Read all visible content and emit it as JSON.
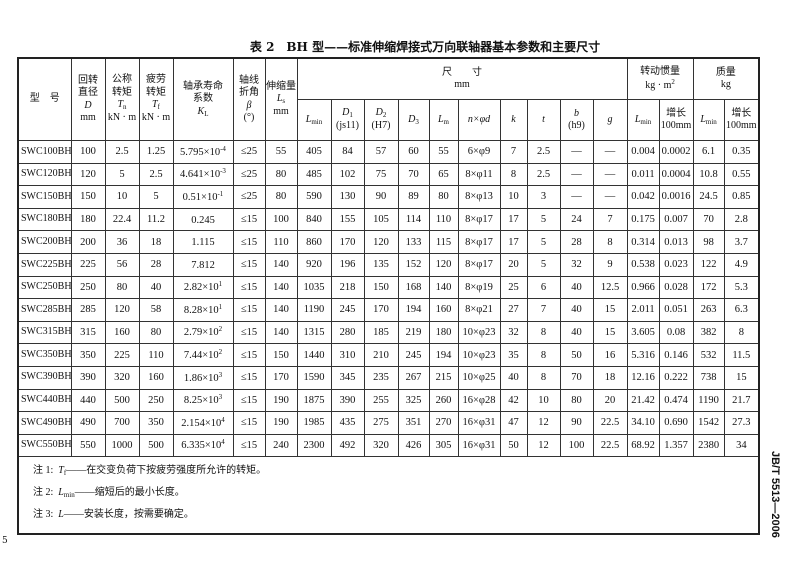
{
  "title": "表 2　BH 型——标准伸缩焊接式万向联轴器基本参数和主要尺寸",
  "headers": {
    "model": "型　号",
    "D": {
      "l1": "回转",
      "l2": "直径",
      "sym": "D",
      "unit": "mm"
    },
    "Tn": {
      "l1": "公称",
      "l2": "转矩",
      "sym": "T",
      "sub": "n",
      "unit": "kN · m"
    },
    "Tf": {
      "l1": "疲劳",
      "l2": "转矩",
      "sym": "T",
      "sub": "f",
      "unit": "kN · m"
    },
    "KL": {
      "l1": "轴承寿命",
      "l2": "系数",
      "sym": "K",
      "sub": "L"
    },
    "beta": {
      "l1": "轴线",
      "l2": "折角",
      "sym": "β",
      "unit": "(°)"
    },
    "Ls": {
      "l1": "伸缩量",
      "sym": "L",
      "sub": "s",
      "unit": "mm"
    },
    "dims": {
      "l1": "尺　　寸",
      "unit": "mm"
    },
    "Lmin": {
      "sym": "L",
      "sub": "min"
    },
    "D1": {
      "sym": "D",
      "sub": "1",
      "tol": "(js11)"
    },
    "D2": {
      "sym": "D",
      "sub": "2",
      "tol": "(H7)"
    },
    "D3": {
      "sym": "D",
      "sub": "3"
    },
    "Lm": {
      "sym": "L",
      "sub": "m"
    },
    "nd": "n×φd",
    "k": "k",
    "t": "t",
    "b": {
      "sym": "b",
      "tol": "(h9)"
    },
    "g": "g",
    "inertia": {
      "l1": "转动惯量",
      "unit": "kg · m",
      "sup": "2"
    },
    "mass": {
      "l1": "质量",
      "unit": "kg"
    },
    "growth": {
      "l1": "增长",
      "l2": "100mm"
    }
  },
  "rows": [
    [
      "SWC100BH",
      "100",
      "2.5",
      "1.25",
      [
        "5.795×10",
        "-4"
      ],
      "≤25",
      "55",
      "405",
      "84",
      "57",
      "60",
      "55",
      "6×φ9",
      "7",
      "2.5",
      "—",
      "—",
      "0.004",
      "0.0002",
      "6.1",
      "0.35"
    ],
    [
      "SWC120BH",
      "120",
      "5",
      "2.5",
      [
        "4.641×10",
        "-3"
      ],
      "≤25",
      "80",
      "485",
      "102",
      "75",
      "70",
      "65",
      "8×φ11",
      "8",
      "2.5",
      "—",
      "—",
      "0.011",
      "0.0004",
      "10.8",
      "0.55"
    ],
    [
      "SWC150BH",
      "150",
      "10",
      "5",
      [
        "0.51×10",
        "-1"
      ],
      "≤25",
      "80",
      "590",
      "130",
      "90",
      "89",
      "80",
      "8×φ13",
      "10",
      "3",
      "—",
      "—",
      "0.042",
      "0.0016",
      "24.5",
      "0.85"
    ],
    [
      "SWC180BH",
      "180",
      "22.4",
      "11.2",
      [
        "0.245",
        ""
      ],
      "≤15",
      "100",
      "840",
      "155",
      "105",
      "114",
      "110",
      "8×φ17",
      "17",
      "5",
      "24",
      "7",
      "0.175",
      "0.007",
      "70",
      "2.8"
    ],
    [
      "SWC200BH",
      "200",
      "36",
      "18",
      [
        "1.115",
        ""
      ],
      "≤15",
      "110",
      "860",
      "170",
      "120",
      "133",
      "115",
      "8×φ17",
      "17",
      "5",
      "28",
      "8",
      "0.314",
      "0.013",
      "98",
      "3.7"
    ],
    [
      "SWC225BH",
      "225",
      "56",
      "28",
      [
        "7.812",
        ""
      ],
      "≤15",
      "140",
      "920",
      "196",
      "135",
      "152",
      "120",
      "8×φ17",
      "20",
      "5",
      "32",
      "9",
      "0.538",
      "0.023",
      "122",
      "4.9"
    ],
    [
      "SWC250BH",
      "250",
      "80",
      "40",
      [
        "2.82×10",
        "1"
      ],
      "≤15",
      "140",
      "1035",
      "218",
      "150",
      "168",
      "140",
      "8×φ19",
      "25",
      "6",
      "40",
      "12.5",
      "0.966",
      "0.028",
      "172",
      "5.3"
    ],
    [
      "SWC285BH",
      "285",
      "120",
      "58",
      [
        "8.28×10",
        "1"
      ],
      "≤15",
      "140",
      "1190",
      "245",
      "170",
      "194",
      "160",
      "8×φ21",
      "27",
      "7",
      "40",
      "15",
      "2.011",
      "0.051",
      "263",
      "6.3"
    ],
    [
      "SWC315BH",
      "315",
      "160",
      "80",
      [
        "2.79×10",
        "2"
      ],
      "≤15",
      "140",
      "1315",
      "280",
      "185",
      "219",
      "180",
      "10×φ23",
      "32",
      "8",
      "40",
      "15",
      "3.605",
      "0.08",
      "382",
      "8"
    ],
    [
      "SWC350BH",
      "350",
      "225",
      "110",
      [
        "7.44×10",
        "2"
      ],
      "≤15",
      "150",
      "1440",
      "310",
      "210",
      "245",
      "194",
      "10×φ23",
      "35",
      "8",
      "50",
      "16",
      "5.316",
      "0.146",
      "532",
      "11.5"
    ],
    [
      "SWC390BH",
      "390",
      "320",
      "160",
      [
        "1.86×10",
        "3"
      ],
      "≤15",
      "170",
      "1590",
      "345",
      "235",
      "267",
      "215",
      "10×φ25",
      "40",
      "8",
      "70",
      "18",
      "12.16",
      "0.222",
      "738",
      "15"
    ],
    [
      "SWC440BH",
      "440",
      "500",
      "250",
      [
        "8.25×10",
        "3"
      ],
      "≤15",
      "190",
      "1875",
      "390",
      "255",
      "325",
      "260",
      "16×φ28",
      "42",
      "10",
      "80",
      "20",
      "21.42",
      "0.474",
      "1190",
      "21.7"
    ],
    [
      "SWC490BH",
      "490",
      "700",
      "350",
      [
        "2.154×10",
        "4"
      ],
      "≤15",
      "190",
      "1985",
      "435",
      "275",
      "351",
      "270",
      "16×φ31",
      "47",
      "12",
      "90",
      "22.5",
      "34.10",
      "0.690",
      "1542",
      "27.3"
    ],
    [
      "SWC550BH",
      "550",
      "1000",
      "500",
      [
        "6.335×10",
        "4"
      ],
      "≤15",
      "240",
      "2300",
      "492",
      "320",
      "426",
      "305",
      "16×φ31",
      "50",
      "12",
      "100",
      "22.5",
      "68.92",
      "1.357",
      "2380",
      "34"
    ]
  ],
  "notes": [
    {
      "label": "注 1:",
      "sym": "T",
      "sub": "f",
      "text": "——在交变负荷下按疲劳强度所允许的转矩。"
    },
    {
      "label": "注 2:",
      "sym": "L",
      "sub": "min",
      "text": "——缩短后的最小长度。"
    },
    {
      "label": "注 3:",
      "sym": "L",
      "sub": "",
      "text": "——安装长度，按需要确定。"
    }
  ],
  "standard_code": "JB/T 5513—2006",
  "page_mark": "5"
}
